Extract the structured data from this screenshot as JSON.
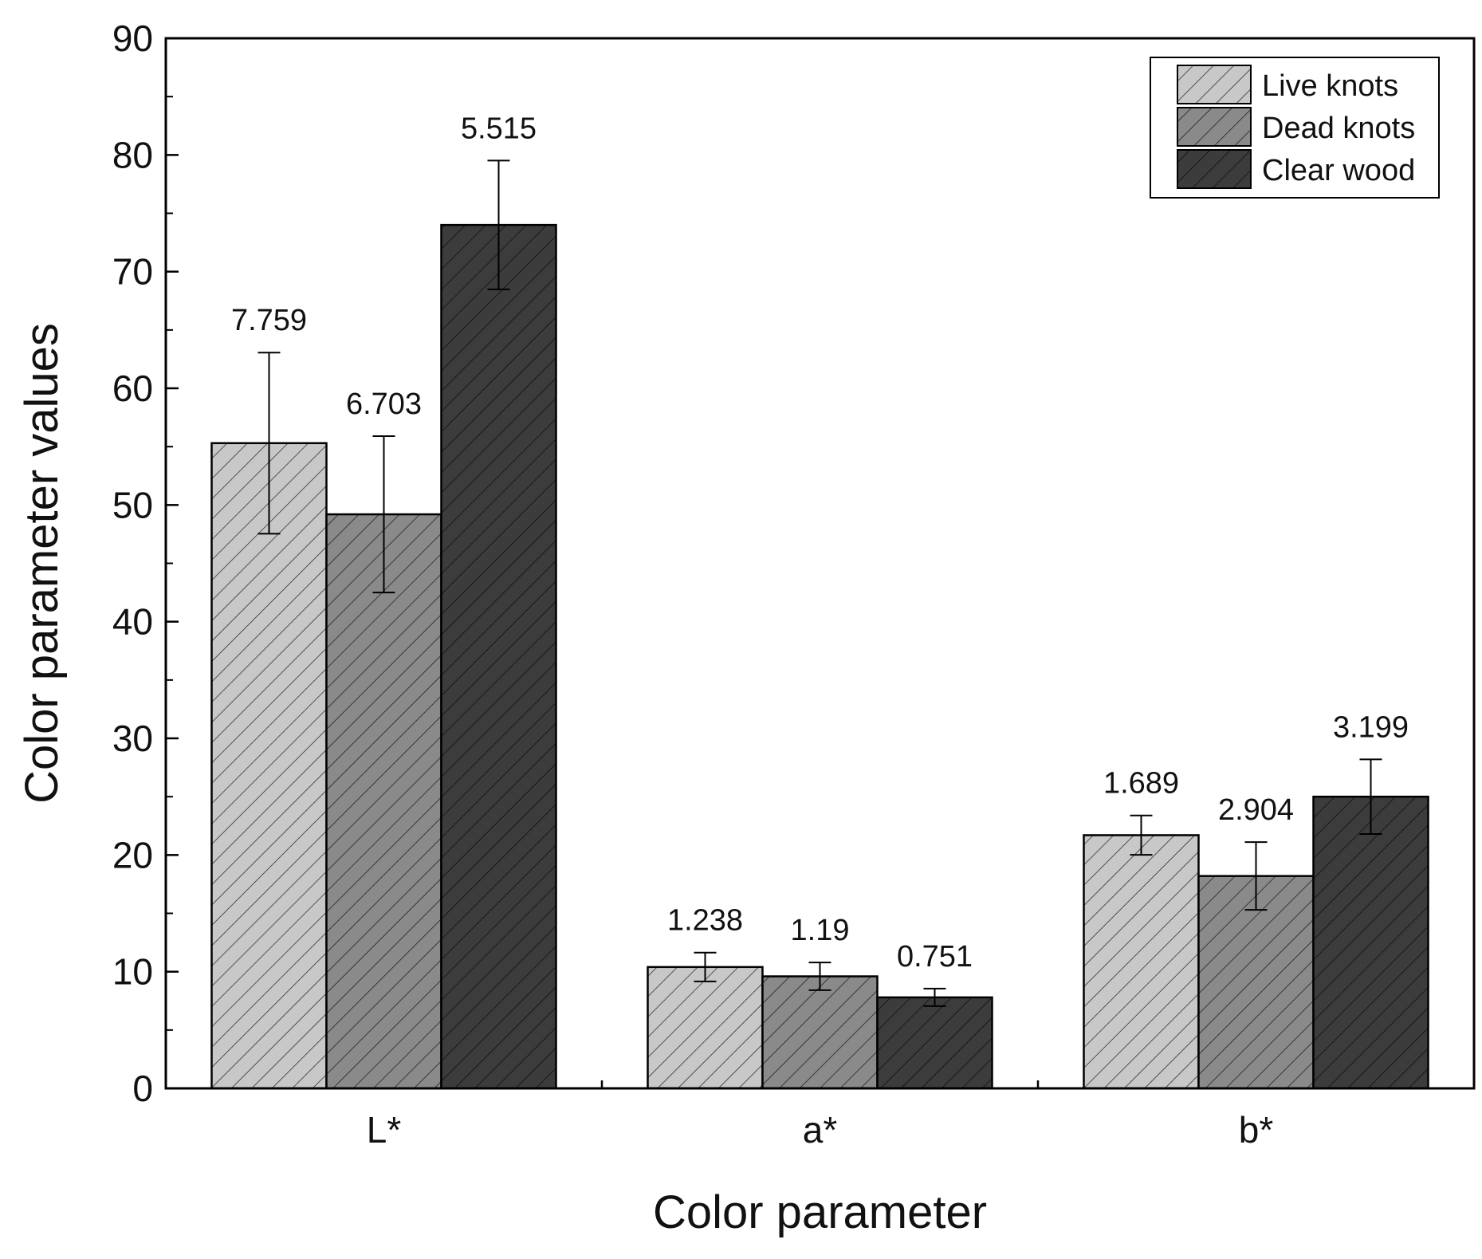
{
  "chart_data": {
    "type": "bar",
    "categories": [
      "L*",
      "a*",
      "b*"
    ],
    "xlabel": "Color parameter",
    "ylabel": "Color parameter values",
    "ylim": [
      0,
      90
    ],
    "yticks": [
      0,
      10,
      20,
      30,
      40,
      50,
      60,
      70,
      80,
      90
    ],
    "grid": false,
    "legend_position": "top-right",
    "bar_pattern": "diagonal-hatch",
    "series": [
      {
        "name": "Live knots",
        "color": "#c8c8c8",
        "values": [
          55.3,
          10.4,
          21.7
        ],
        "errors": [
          7.759,
          1.238,
          1.689
        ],
        "error_labels": [
          "7.759",
          "1.238",
          "1.689"
        ]
      },
      {
        "name": "Dead knots",
        "color": "#8a8a8a",
        "values": [
          49.2,
          9.6,
          18.2
        ],
        "errors": [
          6.703,
          1.19,
          2.904
        ],
        "error_labels": [
          "6.703",
          "1.19",
          "2.904"
        ]
      },
      {
        "name": "Clear wood",
        "color": "#3c3c3c",
        "values": [
          74.0,
          7.8,
          25.0
        ],
        "errors": [
          5.515,
          0.751,
          3.199
        ],
        "error_labels": [
          "5.515",
          "0.751",
          "3.199"
        ]
      }
    ]
  }
}
